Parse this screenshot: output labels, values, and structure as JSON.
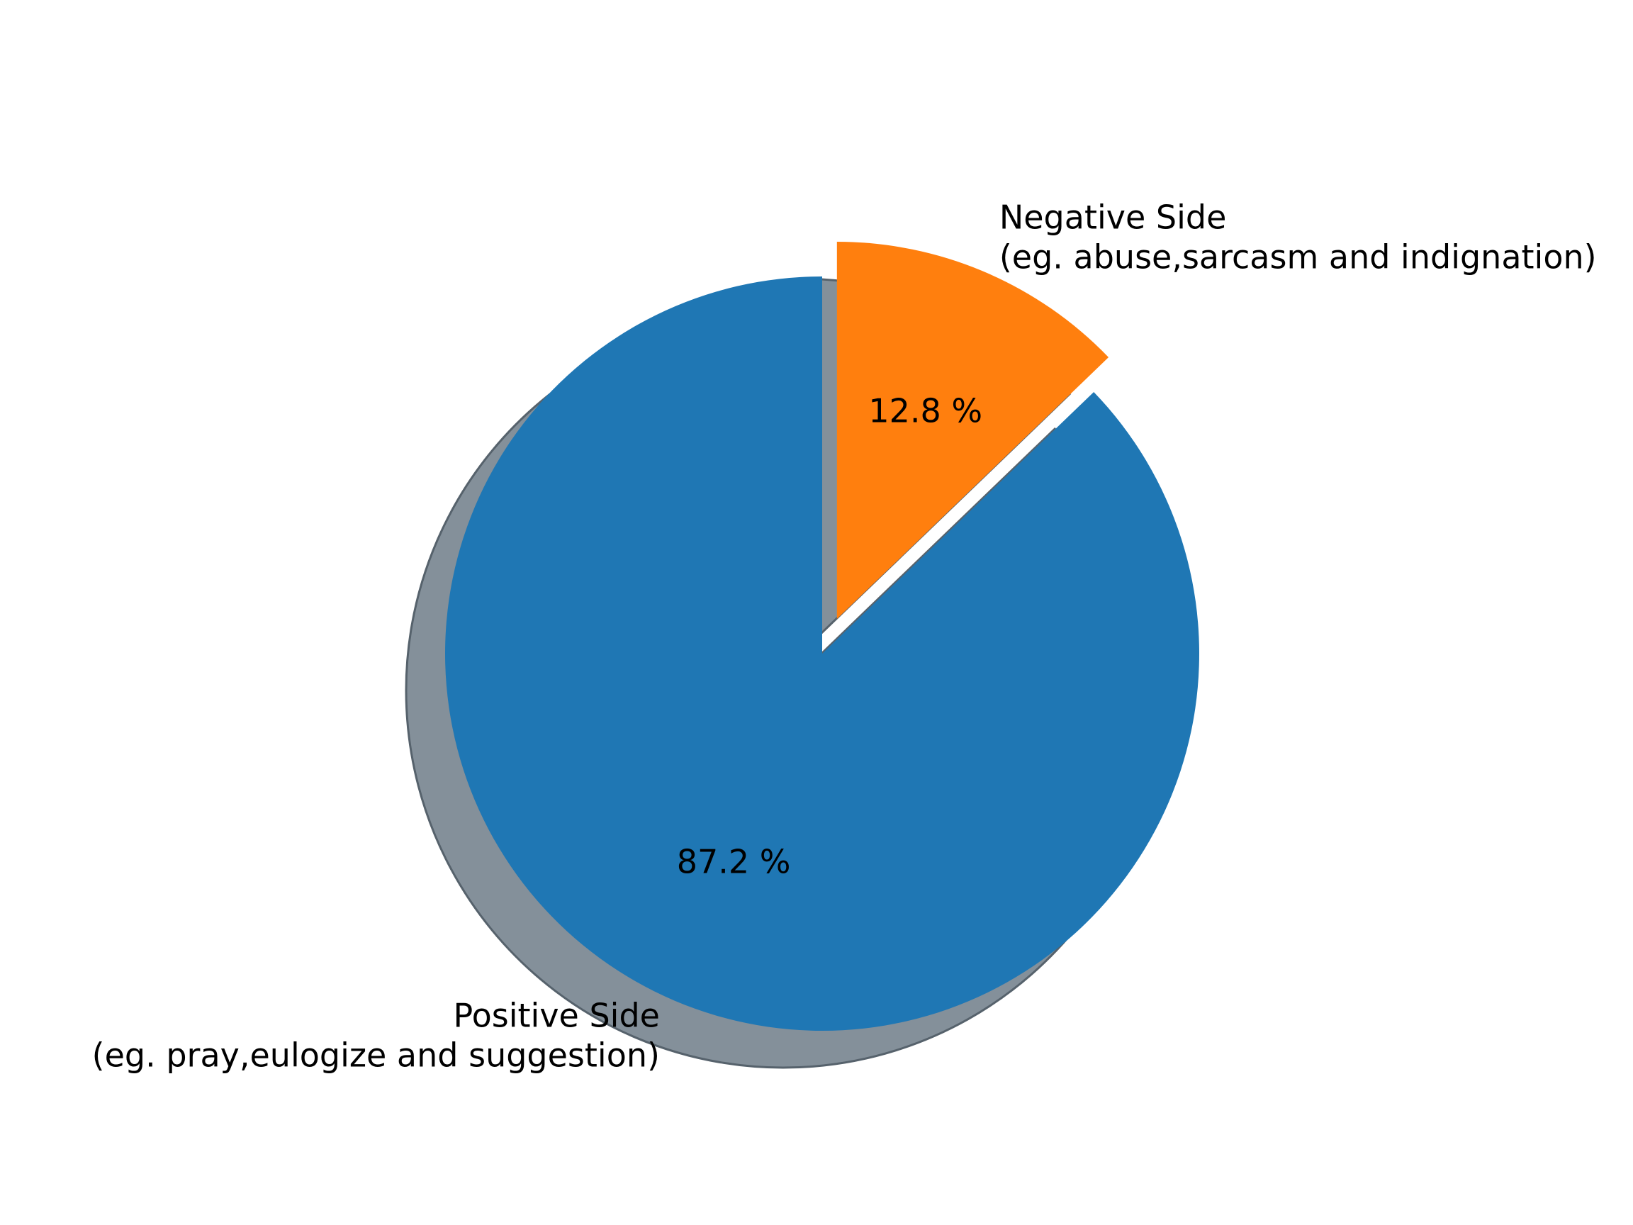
{
  "chart_data": {
    "type": "pie",
    "slices": [
      {
        "label_lines": [
          "Negative Side",
          "(eg. abuse,sarcasm and indignation)"
        ],
        "value": 12.8,
        "pct_text": "12.8 %",
        "color": "#ff7f0e",
        "exploded": true
      },
      {
        "label_lines": [
          "Positive Side",
          "(eg. pray,eulogize and suggestion)"
        ],
        "value": 87.2,
        "pct_text": "87.2 %",
        "color": "#1f77b4",
        "exploded": false
      }
    ],
    "start_angle_deg": 90,
    "direction": "clockwise",
    "shadow": true,
    "shadow_color": "#84909a"
  }
}
